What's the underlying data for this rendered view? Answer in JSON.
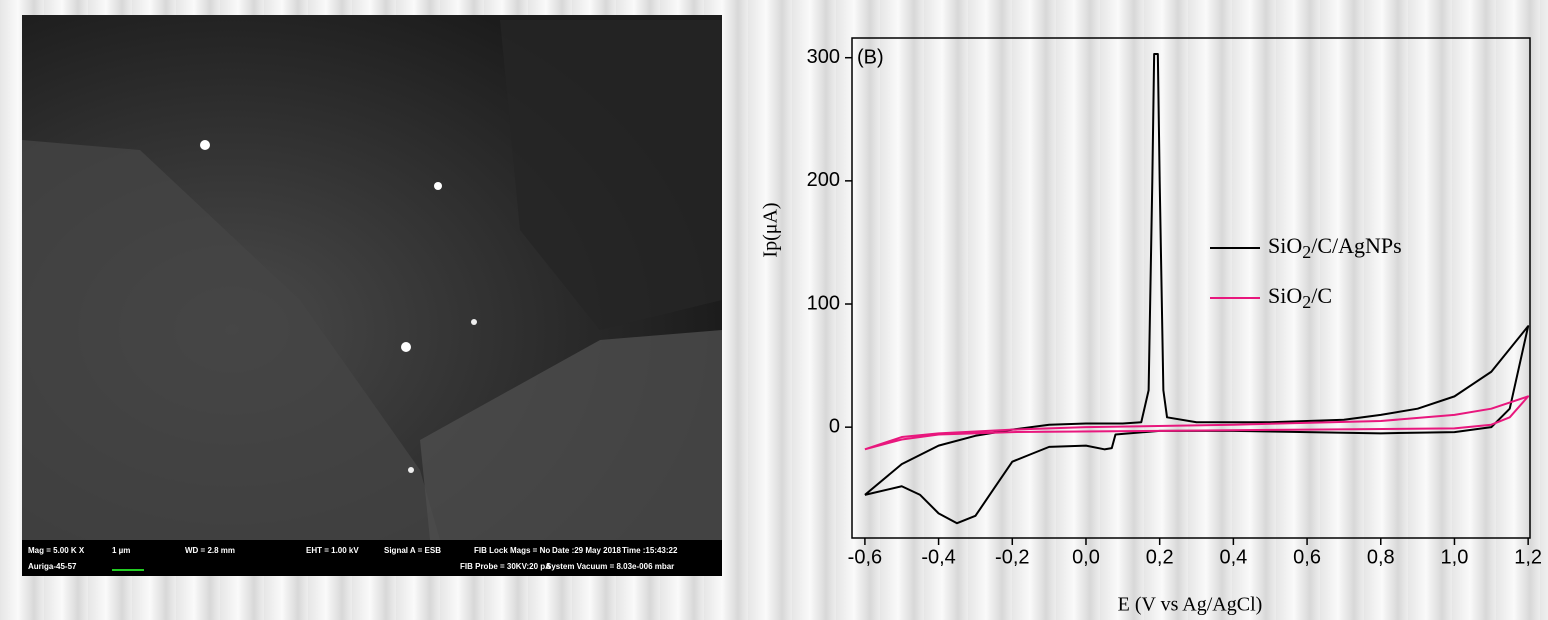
{
  "sem_image": {
    "info_bar": [
      {
        "text": "Mag =  5.00 K X",
        "row": 0,
        "col": 0
      },
      {
        "text": "1 µm",
        "row": 0,
        "col": 1
      },
      {
        "text": "WD =  2.8 mm",
        "row": 0,
        "col": 2
      },
      {
        "text": "EHT =  1.00 kV",
        "row": 0,
        "col": 3
      },
      {
        "text": "Signal A = ESB",
        "row": 0,
        "col": 4
      },
      {
        "text": "FIB Lock Mags = No",
        "row": 0,
        "col": 5
      },
      {
        "text": "Date :29 May 2018",
        "row": 0,
        "col": 6
      },
      {
        "text": "Time :15:43:22",
        "row": 0,
        "col": 7
      },
      {
        "text": "Auriga-45-57",
        "row": 1,
        "col": 0
      },
      {
        "text": "FIB Probe = 30KV:20 pA",
        "row": 1,
        "col": 5
      },
      {
        "text": "System Vacuum = 8.03e-006 mbar",
        "row": 1,
        "col": 7
      }
    ]
  },
  "chart_data": {
    "type": "line",
    "annotation": "(B)",
    "x_label": "E (V vs Ag/AgCl)",
    "y_label": "Ip(μA)",
    "xlim": [
      -0.635,
      1.205
    ],
    "ylim": [
      -90,
      316
    ],
    "xticks": [
      {
        "value": -0.6,
        "label": "-0,6"
      },
      {
        "value": -0.4,
        "label": "-0,4"
      },
      {
        "value": -0.2,
        "label": "-0,2"
      },
      {
        "value": 0,
        "label": "0,0"
      },
      {
        "value": 0.2,
        "label": "0,2"
      },
      {
        "value": 0.4,
        "label": "0,4"
      },
      {
        "value": 0.6,
        "label": "0,6"
      },
      {
        "value": 0.8,
        "label": "0,8"
      },
      {
        "value": 1.0,
        "label": "1,0"
      },
      {
        "value": 1.2,
        "label": "1,2"
      }
    ],
    "yticks": [
      0,
      100,
      200,
      300
    ],
    "legend": "right",
    "series": [
      {
        "name": "SiO2/C/AgNPs",
        "color": "#000000",
        "x": [
          -0.6,
          -0.5,
          -0.4,
          -0.3,
          -0.2,
          -0.1,
          0.0,
          0.1,
          0.15,
          0.17,
          0.18,
          0.185,
          0.195,
          0.2,
          0.21,
          0.22,
          0.3,
          0.5,
          0.7,
          0.8,
          0.9,
          1.0,
          1.1,
          1.2,
          1.15,
          1.1,
          1.0,
          0.8,
          0.6,
          0.4,
          0.2,
          0.08,
          0.07,
          0.05,
          0.0,
          -0.1,
          -0.15,
          -0.2,
          -0.25,
          -0.3,
          -0.35,
          -0.4,
          -0.45,
          -0.5,
          -0.6
        ],
        "values": [
          -55,
          -30,
          -15,
          -7,
          -2,
          2,
          3,
          3,
          4,
          30,
          200,
          303,
          303,
          200,
          30,
          8,
          4,
          4,
          6,
          10,
          15,
          25,
          45,
          82,
          15,
          0,
          -4,
          -5,
          -4,
          -3,
          -3,
          -6,
          -17,
          -18,
          -15,
          -16,
          -22,
          -28,
          -50,
          -72,
          -78,
          -70,
          -55,
          -48,
          -55
        ]
      },
      {
        "name": "SiO2/C",
        "color": "#e8177d",
        "x": [
          -0.6,
          -0.5,
          -0.4,
          -0.2,
          0.0,
          0.4,
          0.8,
          1.0,
          1.1,
          1.2,
          1.15,
          1.1,
          1.0,
          0.6,
          0.2,
          -0.2,
          -0.4,
          -0.5,
          -0.6
        ],
        "values": [
          -18,
          -8,
          -5,
          -2,
          0,
          2,
          5,
          10,
          15,
          25,
          8,
          2,
          -1,
          -2,
          -3,
          -4,
          -6,
          -10,
          -18
        ]
      }
    ]
  }
}
